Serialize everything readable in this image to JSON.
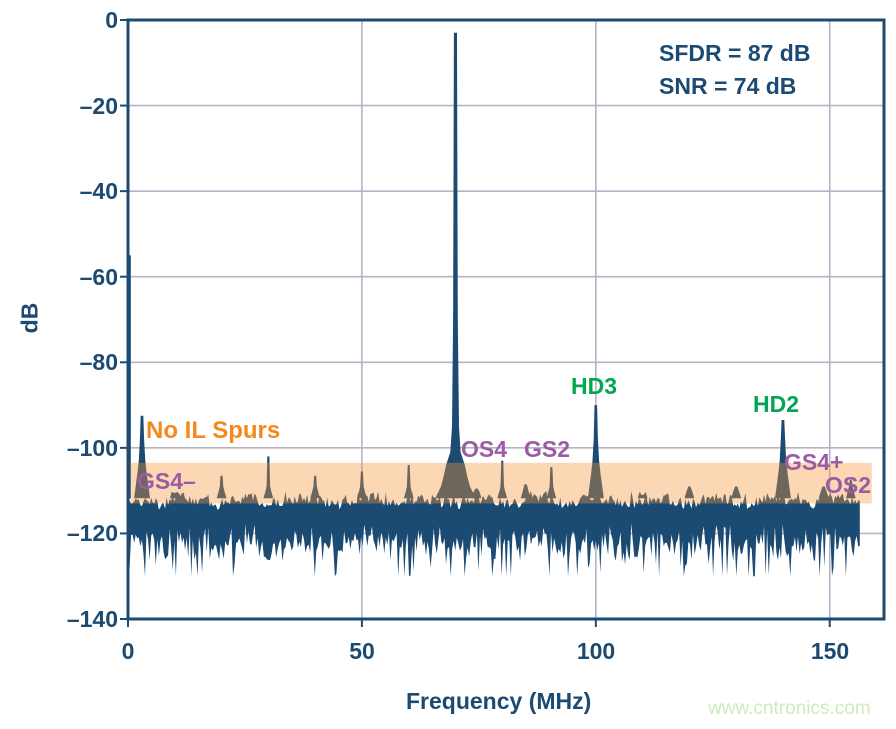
{
  "page": {
    "background": "#FFFFFF",
    "watermark": "www.cntronics.com"
  },
  "chart_data": {
    "type": "line",
    "subtype": "fft-spectrum",
    "title": "",
    "xlabel": "Frequency (MHz)",
    "ylabel": "dB",
    "xlim": [
      0,
      161.6
    ],
    "ylim": [
      -140,
      0
    ],
    "grid": true,
    "x_ticks": [
      {
        "value": 0,
        "label": "0"
      },
      {
        "value": 50,
        "label": "50"
      },
      {
        "value": 100,
        "label": "100"
      },
      {
        "value": 150,
        "label": "150"
      }
    ],
    "y_ticks": [
      {
        "value": 0,
        "label": "0"
      },
      {
        "value": -20,
        "label": "–20"
      },
      {
        "value": -40,
        "label": "–40"
      },
      {
        "value": -60,
        "label": "–60"
      },
      {
        "value": -80,
        "label": "–80"
      },
      {
        "value": -100,
        "label": "–100"
      },
      {
        "value": -120,
        "label": "–120"
      },
      {
        "value": -140,
        "label": "–140"
      }
    ],
    "annotations": {
      "sfdr": "SFDR = 87 dB",
      "snr": "SNR = 74 dB"
    },
    "fundamental": {
      "f_mhz": 70,
      "db": -3
    },
    "dc_leakage": {
      "f_start_mhz": 0.05,
      "f_end_mhz": 0.6,
      "db": -55
    },
    "spurs": [
      {
        "f_mhz": 3,
        "db": -92.5,
        "shape": "major",
        "label": "GS4–"
      },
      {
        "f_mhz": 10,
        "db": -110.5,
        "shape": "minor"
      },
      {
        "f_mhz": 20,
        "db": -106.5,
        "shape": "minor"
      },
      {
        "f_mhz": 30,
        "db": -102,
        "shape": "minor"
      },
      {
        "f_mhz": 40,
        "db": -106.5,
        "shape": "minor"
      },
      {
        "f_mhz": 50,
        "db": -105.5,
        "shape": "minor"
      },
      {
        "f_mhz": 60,
        "db": -104,
        "shape": "minor"
      },
      {
        "f_mhz": 74.5,
        "db": -109.5,
        "shape": "minor"
      },
      {
        "f_mhz": 80,
        "db": -103,
        "shape": "minor",
        "label": "OS4"
      },
      {
        "f_mhz": 85,
        "db": -108.5,
        "shape": "minor"
      },
      {
        "f_mhz": 90.5,
        "db": -104.5,
        "shape": "minor",
        "label": "GS2"
      },
      {
        "f_mhz": 100,
        "db": -90,
        "shape": "major",
        "label": "HD3"
      },
      {
        "f_mhz": 110,
        "db": -111,
        "shape": "minor"
      },
      {
        "f_mhz": 120,
        "db": -109,
        "shape": "minor"
      },
      {
        "f_mhz": 130,
        "db": -109,
        "shape": "minor"
      },
      {
        "f_mhz": 140,
        "db": -93.5,
        "shape": "major",
        "label": "HD2"
      },
      {
        "f_mhz": 148.7,
        "db": -109,
        "shape": "minor",
        "label": "GS4+"
      },
      {
        "f_mhz": 154.5,
        "db": -107.5,
        "shape": "minor",
        "label": "OS2"
      }
    ],
    "noise_floor_db": {
      "top_mean": -112.4,
      "bottom_mean": -121.5,
      "min": -130,
      "f_end_mhz": 156.5
    },
    "highlight_band": {
      "label": "No IL Spurs",
      "db_top": -103.5,
      "db_bottom": -113,
      "f_start_mhz": 0.5,
      "f_end_mhz": 159
    },
    "colors": {
      "trace_navy": "#1B4A73",
      "grid": "#B4B4C8",
      "band_fill_rgba": "rgba(244,150,56,0.38)",
      "band_label_orange": "#F5881F",
      "spur_label_purple": "#9B5BA5",
      "harmonic_label_green": "#00A651",
      "watermark_green": "#CBEDBA"
    }
  },
  "spur_labels": {
    "no_il_spurs": "No IL Spurs",
    "gs4_minus": "GS4–",
    "os4": "OS4",
    "gs2": "GS2",
    "hd3": "HD3",
    "hd2": "HD2",
    "gs4_plus": "GS4+",
    "os2": "OS2"
  }
}
